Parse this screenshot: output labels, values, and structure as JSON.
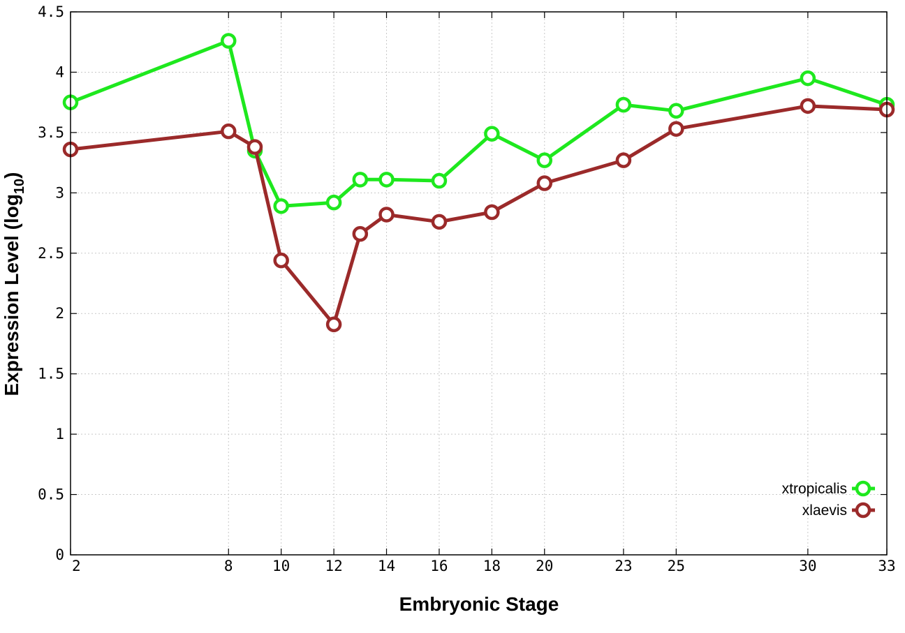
{
  "chart_data": {
    "type": "line",
    "xlabel": "Embryonic Stage",
    "ylabel_main": "Expression Level (log",
    "ylabel_sub": "10",
    "ylabel_end": ")",
    "x": [
      2,
      8,
      9,
      10,
      12,
      13,
      14,
      16,
      18,
      20,
      23,
      25,
      30,
      33
    ],
    "xticks": [
      "2",
      "8",
      "10",
      "12",
      "14",
      "16",
      "18",
      "20",
      "23",
      "25",
      "30",
      "33"
    ],
    "xtick_values": [
      2,
      8,
      10,
      12,
      14,
      16,
      18,
      20,
      23,
      25,
      30,
      33
    ],
    "yticks": [
      "0",
      "0.5",
      "1",
      "1.5",
      "2",
      "2.5",
      "3",
      "3.5",
      "4",
      "4.5"
    ],
    "ytick_values": [
      0,
      0.5,
      1,
      1.5,
      2,
      2.5,
      3,
      3.5,
      4,
      4.5
    ],
    "xlim": [
      2,
      33
    ],
    "ylim": [
      0,
      4.5
    ],
    "grid": true,
    "legend_position": "bottom-right",
    "series": [
      {
        "name": "xtropicalis",
        "color": "#1ee81e",
        "values": [
          3.75,
          4.26,
          3.35,
          2.89,
          2.92,
          3.11,
          3.11,
          3.1,
          3.49,
          3.27,
          3.73,
          3.68,
          3.95,
          3.73
        ]
      },
      {
        "name": "xlaevis",
        "color": "#9b2a2a",
        "values": [
          3.36,
          3.51,
          3.38,
          2.44,
          1.91,
          2.66,
          2.82,
          2.76,
          2.84,
          3.08,
          3.27,
          3.53,
          3.72,
          3.69
        ]
      }
    ]
  }
}
